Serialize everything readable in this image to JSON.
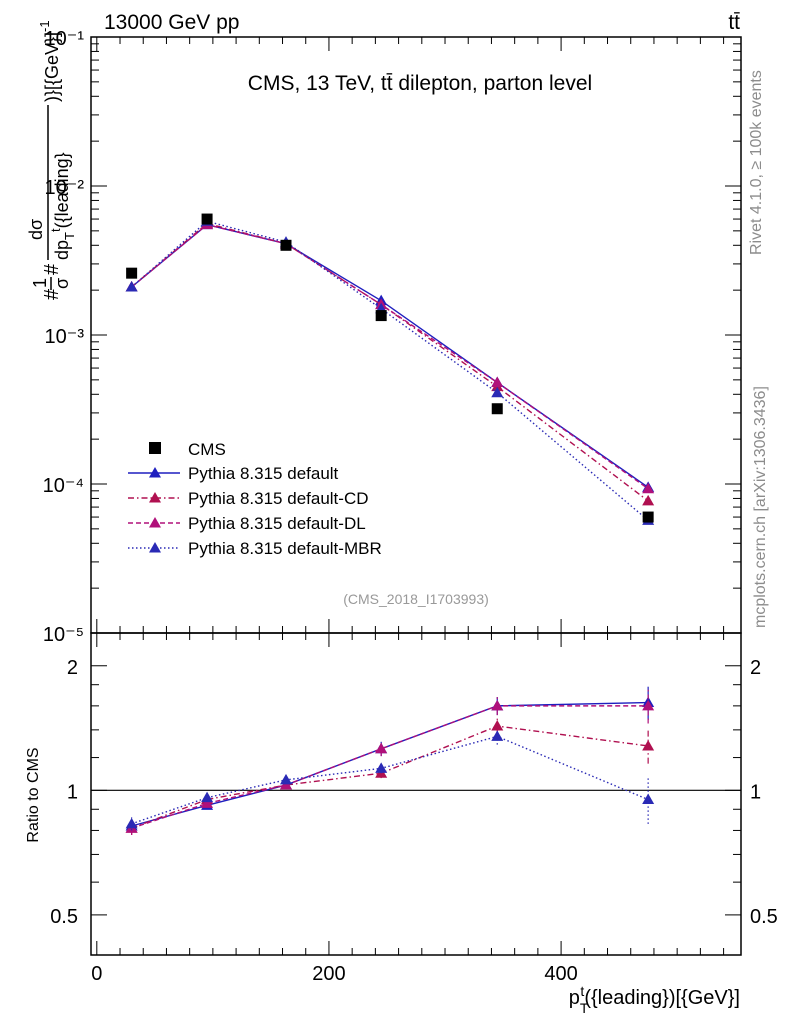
{
  "header": {
    "left": "13000 GeV pp",
    "right": "tt̄"
  },
  "side_labels": {
    "rivet": "Rivet 4.1.0, ≥ 100k events",
    "mcplots": "mcplots.cern.ch [arXiv:1306.3436]"
  },
  "colors": {
    "cms": "#000000",
    "default": "#1f1fbf",
    "cd": "#b01050",
    "dl": "#b0107a",
    "mbr": "#2a2ab5"
  },
  "chart_data": [
    {
      "type": "line",
      "title": "CMS, 13 TeV, tt̄ dilepton, parton level",
      "analysis": "(CMS_2018_I1703993)",
      "ylabel_top": "#1/σ# dσ/dp_T^t({leading})[{GeV}]^-1",
      "yscale": "log",
      "ylim": [
        1e-05,
        0.1
      ],
      "xlim": [
        -5,
        555
      ],
      "ytick_labels": [
        "10⁻¹",
        "10⁻²",
        "10⁻³",
        "10⁻⁴",
        "10⁻⁵"
      ],
      "x": [
        30,
        95,
        163,
        245,
        345,
        475
      ],
      "data": {
        "name": "CMS",
        "values": [
          0.0026,
          0.006,
          0.004,
          0.00135,
          0.00032,
          6e-05
        ]
      },
      "series": [
        {
          "name": "Pythia 8.315 default",
          "key": "default",
          "style": "solid",
          "values": [
            0.0021,
            0.0055,
            0.0041,
            0.0017,
            0.00048,
            9.5e-05
          ]
        },
        {
          "name": "Pythia 8.315 default-CD",
          "key": "cd",
          "style": "dashdot",
          "values": [
            0.0021,
            0.0056,
            0.0041,
            0.0016,
            0.00045,
            7.7e-05
          ]
        },
        {
          "name": "Pythia 8.315 default-DL",
          "key": "dl",
          "style": "dashed",
          "values": [
            0.0021,
            0.0055,
            0.0041,
            0.0016,
            0.00048,
            9.3e-05
          ]
        },
        {
          "name": "Pythia 8.315 default-MBR",
          "key": "mbr",
          "style": "dotted",
          "values": [
            0.0021,
            0.0058,
            0.0042,
            0.0015,
            0.00041,
            5.7e-05
          ]
        }
      ]
    },
    {
      "type": "line",
      "ylabel": "Ratio to CMS",
      "xlabel": "p_T^t({leading})[{GeV}]",
      "yscale": "log",
      "ylim": [
        0.4,
        2.4
      ],
      "xlim": [
        -5,
        555
      ],
      "ytick_labels": [
        "2",
        "1",
        "0.5"
      ],
      "xtick_labels": [
        "0",
        "200",
        "400"
      ],
      "x": [
        30,
        95,
        163,
        245,
        345,
        475
      ],
      "reference": 1,
      "series": [
        {
          "key": "default",
          "style": "solid",
          "values": [
            0.82,
            0.92,
            1.03,
            1.26,
            1.6,
            1.63
          ],
          "err": [
            0.03,
            0.02,
            0.02,
            0.05,
            0.08,
            0.15
          ]
        },
        {
          "key": "cd",
          "style": "dashdot",
          "values": [
            0.81,
            0.95,
            1.03,
            1.1,
            1.43,
            1.28
          ],
          "err": [
            0.03,
            0.02,
            0.02,
            0.03,
            0.06,
            0.12
          ]
        },
        {
          "key": "dl",
          "style": "dashed",
          "values": [
            0.81,
            0.93,
            1.03,
            1.26,
            1.6,
            1.6
          ],
          "err": [
            0.03,
            0.02,
            0.02,
            0.05,
            0.08,
            0.15
          ]
        },
        {
          "key": "mbr",
          "style": "dotted",
          "values": [
            0.83,
            0.96,
            1.06,
            1.13,
            1.35,
            0.95
          ],
          "err": [
            0.03,
            0.02,
            0.02,
            0.03,
            0.06,
            0.12
          ]
        }
      ]
    }
  ]
}
